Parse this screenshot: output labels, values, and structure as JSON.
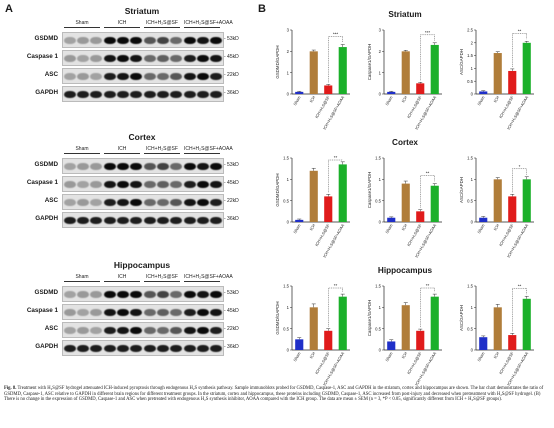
{
  "panel_a": {
    "letter": "A",
    "markers": {
      "gsdmd": "53kD",
      "caspase1": "45kD",
      "asc": "22kD",
      "gapdh": "36kD"
    },
    "rows": [
      "GSDMD",
      "Caspase 1",
      "ASC",
      "GAPDH"
    ],
    "groups": [
      "Sham",
      "ICH",
      "ICH+H₂S@SF",
      "ICH+H₂S@SF+AOAA"
    ],
    "regions": [
      {
        "title": "Striatum"
      },
      {
        "title": "Cortex"
      },
      {
        "title": "Hippocampus"
      }
    ]
  },
  "panel_b": {
    "letter": "B",
    "regions": [
      {
        "title": "Striatum"
      },
      {
        "title": "Cortex"
      },
      {
        "title": "Hippocampus"
      }
    ]
  },
  "chart_data": [
    {
      "type": "bar",
      "region": "Striatum",
      "ylabel": "GSDMD/GAPDH",
      "categories": [
        "Sham",
        "ICH",
        "ICH+H2S@SF",
        "ICH+H2S@SF+AOAA"
      ],
      "values": [
        0.1,
        2.0,
        0.4,
        2.2
      ],
      "errors": [
        0.03,
        0.06,
        0.05,
        0.12
      ],
      "colors": [
        "#1f2fc8",
        "#b07d3a",
        "#e01b1b",
        "#1bb02a"
      ],
      "ylim": [
        0,
        3
      ],
      "yticks": [
        0,
        1,
        2,
        3
      ],
      "significance": "***"
    },
    {
      "type": "bar",
      "region": "Striatum",
      "ylabel": "Caspase1/GAPDH",
      "categories": [
        "Sham",
        "ICH",
        "ICH+H2S@SF",
        "ICH+H2S@SF+AOAA"
      ],
      "values": [
        0.1,
        2.0,
        0.5,
        2.3
      ],
      "errors": [
        0.03,
        0.05,
        0.05,
        0.1
      ],
      "colors": [
        "#1f2fc8",
        "#b07d3a",
        "#e01b1b",
        "#1bb02a"
      ],
      "ylim": [
        0,
        3
      ],
      "yticks": [
        0,
        1,
        2,
        3
      ],
      "significance": "***"
    },
    {
      "type": "bar",
      "region": "Striatum",
      "ylabel": "ASC/GAPDH",
      "categories": [
        "Sham",
        "ICH",
        "ICH+H2S@SF",
        "ICH+H2S@SF+AOAA"
      ],
      "values": [
        0.1,
        1.6,
        0.9,
        2.0
      ],
      "errors": [
        0.03,
        0.05,
        0.08,
        0.06
      ],
      "colors": [
        "#1f2fc8",
        "#b07d3a",
        "#e01b1b",
        "#1bb02a"
      ],
      "ylim": [
        0,
        2.5
      ],
      "yticks": [
        0,
        0.5,
        1,
        1.5,
        2,
        2.5
      ],
      "significance": "**"
    },
    {
      "type": "bar",
      "region": "Cortex",
      "ylabel": "GSDMD/GAPDH",
      "categories": [
        "Sham",
        "ICH",
        "ICH+H2S@SF",
        "ICH+H2S@SF+AOAA"
      ],
      "values": [
        0.05,
        1.2,
        0.6,
        1.35
      ],
      "errors": [
        0.02,
        0.06,
        0.05,
        0.06
      ],
      "colors": [
        "#1f2fc8",
        "#b07d3a",
        "#e01b1b",
        "#1bb02a"
      ],
      "ylim": [
        0,
        1.5
      ],
      "yticks": [
        0,
        0.5,
        1,
        1.5
      ],
      "significance": "**"
    },
    {
      "type": "bar",
      "region": "Cortex",
      "ylabel": "Caspase1/GAPDH",
      "categories": [
        "Sham",
        "ICH",
        "ICH+H2S@SF",
        "ICH+H2S@SF+AOAA"
      ],
      "values": [
        0.1,
        0.9,
        0.25,
        0.85
      ],
      "errors": [
        0.02,
        0.06,
        0.04,
        0.05
      ],
      "colors": [
        "#1f2fc8",
        "#b07d3a",
        "#e01b1b",
        "#1bb02a"
      ],
      "ylim": [
        0,
        1.5
      ],
      "yticks": [
        0,
        0.5,
        1,
        1.5
      ],
      "significance": "**"
    },
    {
      "type": "bar",
      "region": "Cortex",
      "ylabel": "ASC/GAPDH",
      "categories": [
        "Sham",
        "ICH",
        "ICH+H2S@SF",
        "ICH+H2S@SF+AOAA"
      ],
      "values": [
        0.1,
        1.0,
        0.6,
        1.0
      ],
      "errors": [
        0.03,
        0.04,
        0.05,
        0.06
      ],
      "colors": [
        "#1f2fc8",
        "#b07d3a",
        "#e01b1b",
        "#1bb02a"
      ],
      "ylim": [
        0,
        1.5
      ],
      "yticks": [
        0,
        0.5,
        1,
        1.5
      ],
      "significance": "*"
    },
    {
      "type": "bar",
      "region": "Hippocampus",
      "ylabel": "GSDMD/GAPDH",
      "categories": [
        "Sham",
        "ICH",
        "ICH+H2S@SF",
        "ICH+H2S@SF+AOAA"
      ],
      "values": [
        0.25,
        1.0,
        0.45,
        1.25
      ],
      "errors": [
        0.04,
        0.08,
        0.05,
        0.06
      ],
      "colors": [
        "#1f2fc8",
        "#b07d3a",
        "#e01b1b",
        "#1bb02a"
      ],
      "ylim": [
        0,
        1.5
      ],
      "yticks": [
        0,
        0.5,
        1,
        1.5
      ],
      "significance": "**"
    },
    {
      "type": "bar",
      "region": "Hippocampus",
      "ylabel": "Caspase1/GAPDH",
      "categories": [
        "Sham",
        "ICH",
        "ICH+H2S@SF",
        "ICH+H2S@SF+AOAA"
      ],
      "values": [
        0.2,
        1.05,
        0.45,
        1.25
      ],
      "errors": [
        0.04,
        0.06,
        0.04,
        0.06
      ],
      "colors": [
        "#1f2fc8",
        "#b07d3a",
        "#e01b1b",
        "#1bb02a"
      ],
      "ylim": [
        0,
        1.5
      ],
      "yticks": [
        0,
        0.5,
        1,
        1.5
      ],
      "significance": "**"
    },
    {
      "type": "bar",
      "region": "Hippocampus",
      "ylabel": "ASC/GAPDH",
      "categories": [
        "Sham",
        "ICH",
        "ICH+H2S@SF",
        "ICH+H2S@SF+AOAA"
      ],
      "values": [
        0.3,
        1.0,
        0.35,
        1.2
      ],
      "errors": [
        0.03,
        0.07,
        0.04,
        0.06
      ],
      "colors": [
        "#1f2fc8",
        "#b07d3a",
        "#e01b1b",
        "#1bb02a"
      ],
      "ylim": [
        0,
        1.5
      ],
      "yticks": [
        0,
        0.5,
        1,
        1.5
      ],
      "significance": "**"
    }
  ],
  "caption": {
    "fig_label": "Fig. 8.",
    "text": "Treatment with H₂S@SF hydrogel attenuated ICH-induced pyroptosis through endogenous H₂S synthesis pathway. Sample immunoblots probed for GSDMD, Caspase-1, ASC and GAPDH in the striatum, cortex and hippocampus are shown. The bar chart demonstrates the ratio of GSDMD, Caspase-1, ASC relative to GAPDH in different brain regions for different treatment groups. In the striatum, cortex and hippocampus, these proteins including GSDMD, Caspase-1, ASC increased from post-injury and decreased when pretreatment with H₂S@SF hydrogel. (B) There is no change in the expression of GSDMD, Caspase-1 and ASC when pretreated with endogenous H₂S synthesis inhibitor, AOAA compared with the ICH group. The data are mean ± SEM (n = 3, *P < 0.05, significantly different from ICH + H₂S@SF groups)."
  }
}
